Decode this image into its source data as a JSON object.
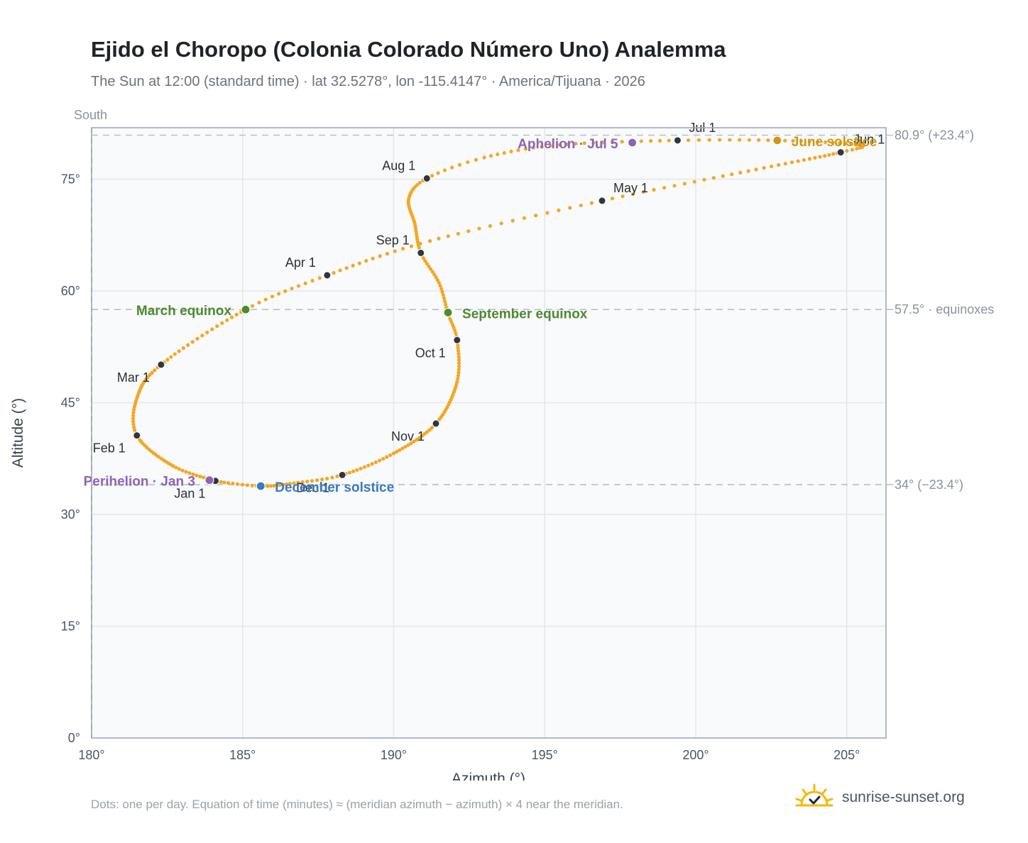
{
  "title": "Ejido el Choropo (Colonia Colorado Número Uno) Analemma",
  "subtitle": "The Sun at 12:00 (standard time) · lat 32.5278°, lon -115.4147° · America/Tijuana · 2026",
  "footnote": "Dots: one per day. Equation of time (minutes) ≈ (meridian azimuth − azimuth) × 4 near the meridian.",
  "brand": "sunrise-sunset.org",
  "colors": {
    "path": "#f5a623",
    "month_marker": "#2f3640",
    "equinox": "#4e8a2e",
    "june_solstice": "#d4960f",
    "december_solstice": "#3a7abf",
    "apsis": "#8e63b5",
    "plot_bg": "#f8fafc",
    "grid": "#e3e8ee",
    "reference_line": "#b8c0ca"
  },
  "chart_data": {
    "type": "scatter",
    "title": "Ejido el Choropo (Colonia Colorado Número Uno) Analemma",
    "xlabel": "Azimuth (°)",
    "ylabel": "Altitude (°)",
    "xlim": [
      180,
      206.3
    ],
    "ylim": [
      0,
      81.9
    ],
    "x_ticks": [
      180,
      185,
      190,
      195,
      200,
      205
    ],
    "x_tick_labels": [
      "180°",
      "185°",
      "190°",
      "195°",
      "200°",
      "205°"
    ],
    "y_ticks": [
      0,
      15,
      30,
      45,
      60,
      75
    ],
    "y_tick_labels": [
      "0°",
      "15°",
      "30°",
      "45°",
      "60°",
      "75°"
    ],
    "grid": true,
    "meridian": {
      "azimuth": 180,
      "label": "South"
    },
    "reference_lines": [
      {
        "altitude": 80.9,
        "label": "80.9° (+23.4°)"
      },
      {
        "altitude": 57.5,
        "label": "57.5° · equinoxes"
      },
      {
        "altitude": 34,
        "label": "34° (−23.4°)"
      }
    ],
    "path_keypoints": [
      [
        1,
        184.1,
        34.5
      ],
      [
        15,
        182.7,
        36.5
      ],
      [
        32,
        181.5,
        40.6
      ],
      [
        45,
        181.5,
        45.6
      ],
      [
        60,
        182.3,
        50.1
      ],
      [
        79,
        185.1,
        57.5
      ],
      [
        91,
        187.8,
        62.1
      ],
      [
        105,
        191.2,
        66.7
      ],
      [
        121,
        196.9,
        72.1
      ],
      [
        137,
        202.0,
        76.3
      ],
      [
        152,
        204.8,
        78.6
      ],
      [
        160,
        205.4,
        79.6
      ],
      [
        172,
        202.7,
        80.2
      ],
      [
        182,
        199.4,
        80.2
      ],
      [
        195,
        195.5,
        79.6
      ],
      [
        205,
        193.0,
        77.9
      ],
      [
        213,
        191.1,
        75.1
      ],
      [
        222,
        190.5,
        72.4
      ],
      [
        233,
        190.7,
        69.0
      ],
      [
        244,
        190.9,
        65.1
      ],
      [
        255,
        191.5,
        61.1
      ],
      [
        265,
        191.8,
        57.0
      ],
      [
        274,
        192.1,
        53.4
      ],
      [
        288,
        192.1,
        47.8
      ],
      [
        305,
        191.4,
        42.2
      ],
      [
        321,
        190.0,
        38.2
      ],
      [
        335,
        188.3,
        35.3
      ],
      [
        345,
        186.7,
        34.2
      ],
      [
        355,
        185.6,
        33.8
      ],
      [
        365,
        184.2,
        34.4
      ]
    ],
    "month_markers": [
      {
        "label": "Jan 1",
        "azimuth": 184.1,
        "altitude": 34.5
      },
      {
        "label": "Feb 1",
        "azimuth": 181.5,
        "altitude": 40.6
      },
      {
        "label": "Mar 1",
        "azimuth": 182.3,
        "altitude": 50.1
      },
      {
        "label": "Apr 1",
        "azimuth": 187.8,
        "altitude": 62.1
      },
      {
        "label": "May 1",
        "azimuth": 196.9,
        "altitude": 72.1
      },
      {
        "label": "Jun 1",
        "azimuth": 204.8,
        "altitude": 78.6
      },
      {
        "label": "Jul 1",
        "azimuth": 199.4,
        "altitude": 80.2
      },
      {
        "label": "Aug 1",
        "azimuth": 191.1,
        "altitude": 75.1
      },
      {
        "label": "Sep 1",
        "azimuth": 190.9,
        "altitude": 65.1
      },
      {
        "label": "Oct 1",
        "azimuth": 192.1,
        "altitude": 53.4
      },
      {
        "label": "Nov 1",
        "azimuth": 191.4,
        "altitude": 42.2
      },
      {
        "label": "Dec 1",
        "azimuth": 188.3,
        "altitude": 35.3
      }
    ],
    "events": [
      {
        "label": "March equinox",
        "azimuth": 185.1,
        "altitude": 57.5,
        "color": "#4e8a2e"
      },
      {
        "label": "June solstice",
        "azimuth": 202.7,
        "altitude": 80.2,
        "color": "#d4960f"
      },
      {
        "label": "September equinox",
        "azimuth": 191.8,
        "altitude": 57.1,
        "color": "#4e8a2e"
      },
      {
        "label": "December solstice",
        "azimuth": 185.6,
        "altitude": 33.8,
        "color": "#3a7abf"
      },
      {
        "label": "Perihelion · Jan 3",
        "azimuth": 183.9,
        "altitude": 34.6,
        "color": "#8e63b5"
      },
      {
        "label": "Aphelion · Jul 5",
        "azimuth": 197.9,
        "altitude": 79.9,
        "color": "#8e63b5"
      }
    ]
  }
}
